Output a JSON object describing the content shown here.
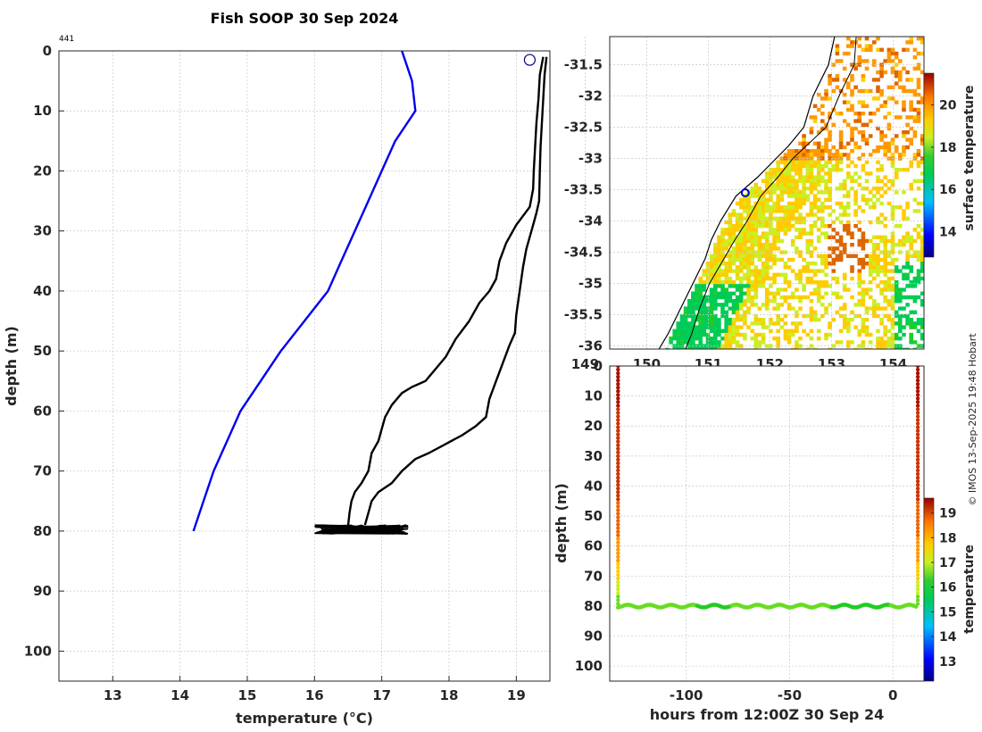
{
  "figure": {
    "title": "Fish SOOP 30 Sep 2024",
    "profile_count": "441",
    "credit": "© IMOS 13-Sep-2025 19:48 Hobart"
  },
  "chart_data": [
    {
      "id": "profile",
      "type": "line",
      "xlabel": "temperature (°C)",
      "ylabel": "depth (m)",
      "xlim": [
        12.2,
        19.5
      ],
      "ylim": [
        105,
        0
      ],
      "xticks": [
        13,
        14,
        15,
        16,
        17,
        18,
        19
      ],
      "yticks": [
        0,
        10,
        20,
        30,
        40,
        50,
        60,
        70,
        80,
        90,
        100
      ],
      "grid": true,
      "series": [
        {
          "color": "#0000ee",
          "points": [
            [
              17.3,
              0
            ],
            [
              17.45,
              5
            ],
            [
              17.5,
              10
            ],
            [
              17.2,
              15
            ],
            [
              17.0,
              20
            ],
            [
              16.8,
              25
            ],
            [
              16.6,
              30
            ],
            [
              16.4,
              35
            ],
            [
              16.2,
              40
            ],
            [
              15.85,
              45
            ],
            [
              15.5,
              50
            ],
            [
              15.2,
              55
            ],
            [
              14.9,
              60
            ],
            [
              14.7,
              65
            ],
            [
              14.5,
              70
            ],
            [
              14.35,
              75
            ],
            [
              14.2,
              80
            ]
          ]
        },
        {
          "color": "#000000",
          "points": [
            [
              19.4,
              1
            ],
            [
              19.35,
              4
            ],
            [
              19.33,
              8
            ],
            [
              19.3,
              12
            ],
            [
              19.28,
              16
            ],
            [
              19.26,
              20
            ],
            [
              19.25,
              23
            ],
            [
              19.2,
              26
            ],
            [
              19.0,
              29
            ],
            [
              18.85,
              32
            ],
            [
              18.75,
              35
            ],
            [
              18.7,
              38
            ],
            [
              18.6,
              40
            ],
            [
              18.45,
              42
            ],
            [
              18.3,
              45
            ],
            [
              18.1,
              48
            ],
            [
              17.95,
              51
            ],
            [
              17.8,
              53
            ],
            [
              17.65,
              55
            ],
            [
              17.45,
              56
            ],
            [
              17.3,
              57
            ],
            [
              17.15,
              59
            ],
            [
              17.05,
              61
            ],
            [
              17.0,
              63
            ],
            [
              16.95,
              65
            ],
            [
              16.85,
              67
            ],
            [
              16.8,
              70
            ],
            [
              16.7,
              72
            ],
            [
              16.6,
              73.5
            ],
            [
              16.55,
              75
            ],
            [
              16.52,
              77
            ],
            [
              16.5,
              79
            ]
          ]
        },
        {
          "color": "#000000",
          "points": [
            [
              19.45,
              1
            ],
            [
              19.42,
              4
            ],
            [
              19.4,
              8
            ],
            [
              19.38,
              12
            ],
            [
              19.36,
              16
            ],
            [
              19.35,
              20
            ],
            [
              19.34,
              25
            ],
            [
              19.3,
              27
            ],
            [
              19.25,
              29
            ],
            [
              19.2,
              31
            ],
            [
              19.15,
              33
            ],
            [
              19.1,
              36
            ],
            [
              19.05,
              40
            ],
            [
              19.0,
              44
            ],
            [
              18.98,
              47
            ],
            [
              18.9,
              49
            ],
            [
              18.8,
              52
            ],
            [
              18.7,
              55
            ],
            [
              18.6,
              58
            ],
            [
              18.55,
              61
            ],
            [
              18.4,
              62.5
            ],
            [
              18.2,
              64
            ],
            [
              17.95,
              65.5
            ],
            [
              17.7,
              67
            ],
            [
              17.5,
              68
            ],
            [
              17.3,
              70
            ],
            [
              17.15,
              72
            ],
            [
              16.95,
              73.5
            ],
            [
              16.85,
              75
            ],
            [
              16.8,
              77
            ],
            [
              16.75,
              79
            ]
          ]
        }
      ],
      "scatter": {
        "color": "#000000",
        "x_range": [
          16.0,
          17.4
        ],
        "y_range": [
          79,
          80.5
        ]
      },
      "surface_marker": {
        "temperature": 19.2,
        "depth": 1.5,
        "color": "#000088"
      }
    },
    {
      "id": "map",
      "type": "heatmap",
      "xlim": [
        149.4,
        154.5
      ],
      "ylim": [
        -36.05,
        -31.05
      ],
      "xticks": [
        149,
        150,
        151,
        152,
        153,
        154
      ],
      "yticks": [
        -31.5,
        -32,
        -32.5,
        -33,
        -33.5,
        -34,
        -34.5,
        -35,
        -35.5,
        -36
      ],
      "grid": true,
      "colorbar": {
        "label": "surface temperature",
        "range": [
          12.8,
          21.5
        ],
        "ticks": [
          14,
          16,
          18,
          20
        ]
      },
      "vessel_position": {
        "lon": 151.6,
        "lat": -33.55,
        "color": "#0000cc"
      }
    },
    {
      "id": "timeseries",
      "type": "scatter",
      "xlabel": "hours from 12:00Z 30 Sep 24",
      "ylabel": "depth (m)",
      "xlim": [
        -137,
        15
      ],
      "ylim": [
        105,
        0
      ],
      "xticks": [
        -100,
        -50,
        0
      ],
      "yticks": [
        0,
        10,
        20,
        30,
        40,
        50,
        60,
        70,
        80,
        90,
        100
      ],
      "grid": true,
      "descent_hours": -133,
      "ascent_hours": 12,
      "bottom_depth": 80,
      "temperature_profile": [
        [
          0,
          19.4
        ],
        [
          40,
          19.1
        ],
        [
          55,
          18.5
        ],
        [
          65,
          17.8
        ],
        [
          75,
          17.0
        ],
        [
          80,
          16.4
        ]
      ],
      "colorbar": {
        "label": "temperature",
        "range": [
          12.2,
          19.6
        ],
        "ticks": [
          13,
          14,
          15,
          16,
          17,
          18,
          19
        ]
      }
    }
  ]
}
